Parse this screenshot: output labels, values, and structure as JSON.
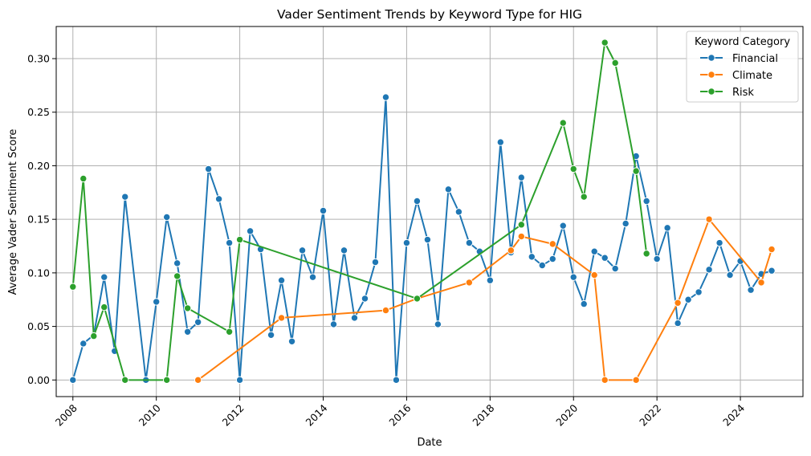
{
  "chart_data": {
    "type": "line",
    "title": "Vader Sentiment Trends by Keyword Type for HIG",
    "xlabel": "Date",
    "ylabel": "Average Vader Sentiment Score",
    "xlim": [
      2007.6,
      2025.5
    ],
    "ylim": [
      -0.0155,
      0.33
    ],
    "x_ticks": [
      2008,
      2010,
      2012,
      2014,
      2016,
      2018,
      2020,
      2022,
      2024
    ],
    "x_tick_labels": [
      "2008",
      "2010",
      "2012",
      "2014",
      "2016",
      "2018",
      "2020",
      "2022",
      "2024"
    ],
    "y_ticks": [
      0.0,
      0.05,
      0.1,
      0.15,
      0.2,
      0.25,
      0.3
    ],
    "y_tick_labels": [
      "0.00",
      "0.05",
      "0.10",
      "0.15",
      "0.20",
      "0.25",
      "0.30"
    ],
    "grid": true,
    "legend": {
      "title": "Keyword Category",
      "position": "top-right"
    },
    "series": [
      {
        "name": "Financial",
        "color": "#1f77b4",
        "x": [
          2008.0,
          2008.25,
          2008.5,
          2008.75,
          2009.0,
          2009.25,
          2009.75,
          2010.0,
          2010.25,
          2010.5,
          2010.75,
          2011.0,
          2011.25,
          2011.5,
          2011.75,
          2012.0,
          2012.25,
          2012.5,
          2012.75,
          2013.0,
          2013.25,
          2013.5,
          2013.75,
          2014.0,
          2014.25,
          2014.5,
          2014.75,
          2015.0,
          2015.25,
          2015.5,
          2015.75,
          2016.0,
          2016.25,
          2016.5,
          2016.75,
          2017.0,
          2017.25,
          2017.5,
          2017.75,
          2018.0,
          2018.25,
          2018.5,
          2018.75,
          2019.0,
          2019.25,
          2019.5,
          2019.75,
          2020.0,
          2020.25,
          2020.5,
          2020.75,
          2021.0,
          2021.25,
          2021.5,
          2021.75,
          2022.0,
          2022.25,
          2022.5,
          2022.75,
          2023.0,
          2023.25,
          2023.5,
          2023.75,
          2024.0,
          2024.25,
          2024.5,
          2024.75
        ],
        "y": [
          0.0,
          0.034,
          0.042,
          0.096,
          0.027,
          0.171,
          0.0,
          0.073,
          0.152,
          0.109,
          0.045,
          0.054,
          0.197,
          0.169,
          0.128,
          0.0,
          0.139,
          0.122,
          0.042,
          0.093,
          0.036,
          0.121,
          0.096,
          0.158,
          0.052,
          0.121,
          0.058,
          0.076,
          0.11,
          0.264,
          0.0,
          0.128,
          0.167,
          0.131,
          0.052,
          0.178,
          0.157,
          0.128,
          0.12,
          0.093,
          0.222,
          0.119,
          0.189,
          0.115,
          0.107,
          0.113,
          0.144,
          0.096,
          0.071,
          0.12,
          0.114,
          0.104,
          0.146,
          0.209,
          0.167,
          0.113,
          0.142,
          0.053,
          0.075,
          0.082,
          0.103,
          0.128,
          0.098,
          0.111,
          0.084,
          0.099,
          0.102
        ]
      },
      {
        "name": "Climate",
        "color": "#ff7f0e",
        "x": [
          2011.0,
          2013.0,
          2015.5,
          2016.25,
          2017.5,
          2018.5,
          2018.75,
          2019.5,
          2020.5,
          2020.75,
          2021.5,
          2022.5,
          2023.25,
          2024.5,
          2024.75
        ],
        "y": [
          0.0,
          0.058,
          0.065,
          0.076,
          0.091,
          0.121,
          0.134,
          0.127,
          0.098,
          0.0,
          0.0,
          0.072,
          0.15,
          0.091,
          0.122
        ]
      },
      {
        "name": "Risk",
        "color": "#2ca02c",
        "x": [
          2008.0,
          2008.25,
          2008.5,
          2008.75,
          2009.25,
          2010.25,
          2010.5,
          2010.75,
          2011.75,
          2012.0,
          2016.25,
          2018.75,
          2019.75,
          2020.0,
          2020.25,
          2020.75,
          2021.0,
          2021.5,
          2021.75
        ],
        "y": [
          0.087,
          0.188,
          0.041,
          0.068,
          0.0,
          0.0,
          0.097,
          0.067,
          0.045,
          0.131,
          0.076,
          0.145,
          0.24,
          0.197,
          0.171,
          0.315,
          0.296,
          0.195,
          0.118
        ]
      }
    ]
  }
}
